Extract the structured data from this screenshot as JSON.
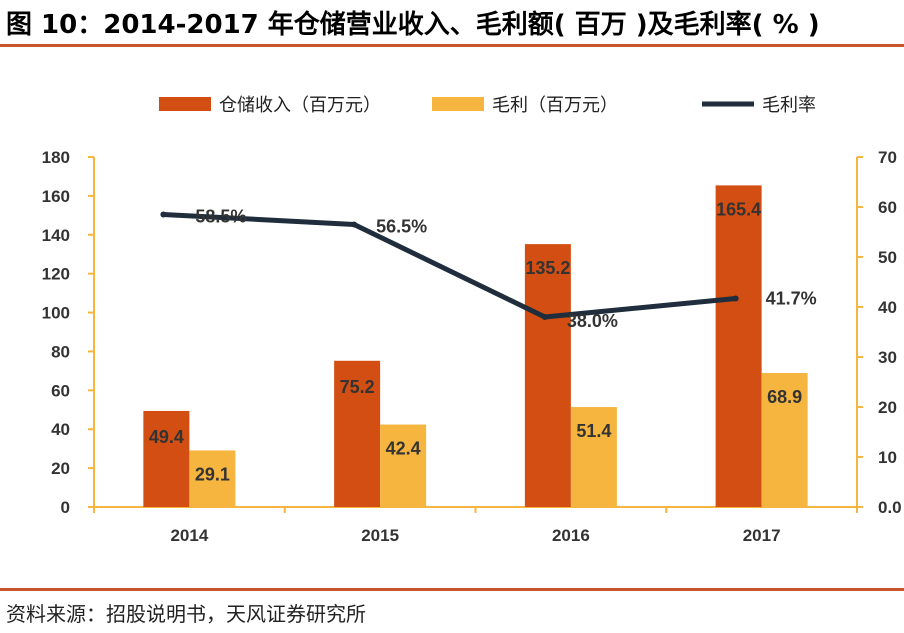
{
  "header": {
    "title": "图 10：2014-2017 年仓储营业收入、毛利额( 百万 )及毛利率( % )"
  },
  "footer": {
    "source": "资料来源：招股说明书，天风证券研究所"
  },
  "colors": {
    "accent_rule": "#c7562a",
    "revenue": "#d24e12",
    "gross_profit": "#f5b53f",
    "margin_line": "#1f2d3d",
    "axis": "#f5b53f"
  },
  "chart_data": {
    "type": "bar",
    "title": "2014-2017 年仓储营业收入、毛利额( 百万 )及毛利率( % )",
    "categories": [
      "2014",
      "2015",
      "2016",
      "2017"
    ],
    "series": [
      {
        "name": "仓储收入（百万元）",
        "type": "bar",
        "axis": "left",
        "values": [
          49.4,
          75.2,
          135.2,
          165.4
        ],
        "labels": [
          "49.4",
          "75.2",
          "135.2",
          "165.4"
        ]
      },
      {
        "name": "毛利（百万元）",
        "type": "bar",
        "axis": "left",
        "values": [
          29.1,
          42.4,
          51.4,
          68.9
        ],
        "labels": [
          "29.1",
          "42.4",
          "51.4",
          "68.9"
        ]
      },
      {
        "name": "毛利率",
        "type": "line",
        "axis": "right",
        "values": [
          58.5,
          56.5,
          38.0,
          41.7
        ],
        "labels": [
          "58.5%",
          "56.5%",
          "38.0%",
          "41.7%"
        ]
      }
    ],
    "y_left": {
      "ylim": [
        0,
        180
      ],
      "ticks": [
        "0",
        "20",
        "40",
        "60",
        "80",
        "100",
        "120",
        "140",
        "160",
        "180"
      ]
    },
    "y_right": {
      "ylim": [
        0,
        70
      ],
      "ticks": [
        "0.0",
        "10",
        "20",
        "30",
        "40",
        "50",
        "60",
        "70"
      ]
    },
    "legend_position": "top-center",
    "grid": false
  }
}
